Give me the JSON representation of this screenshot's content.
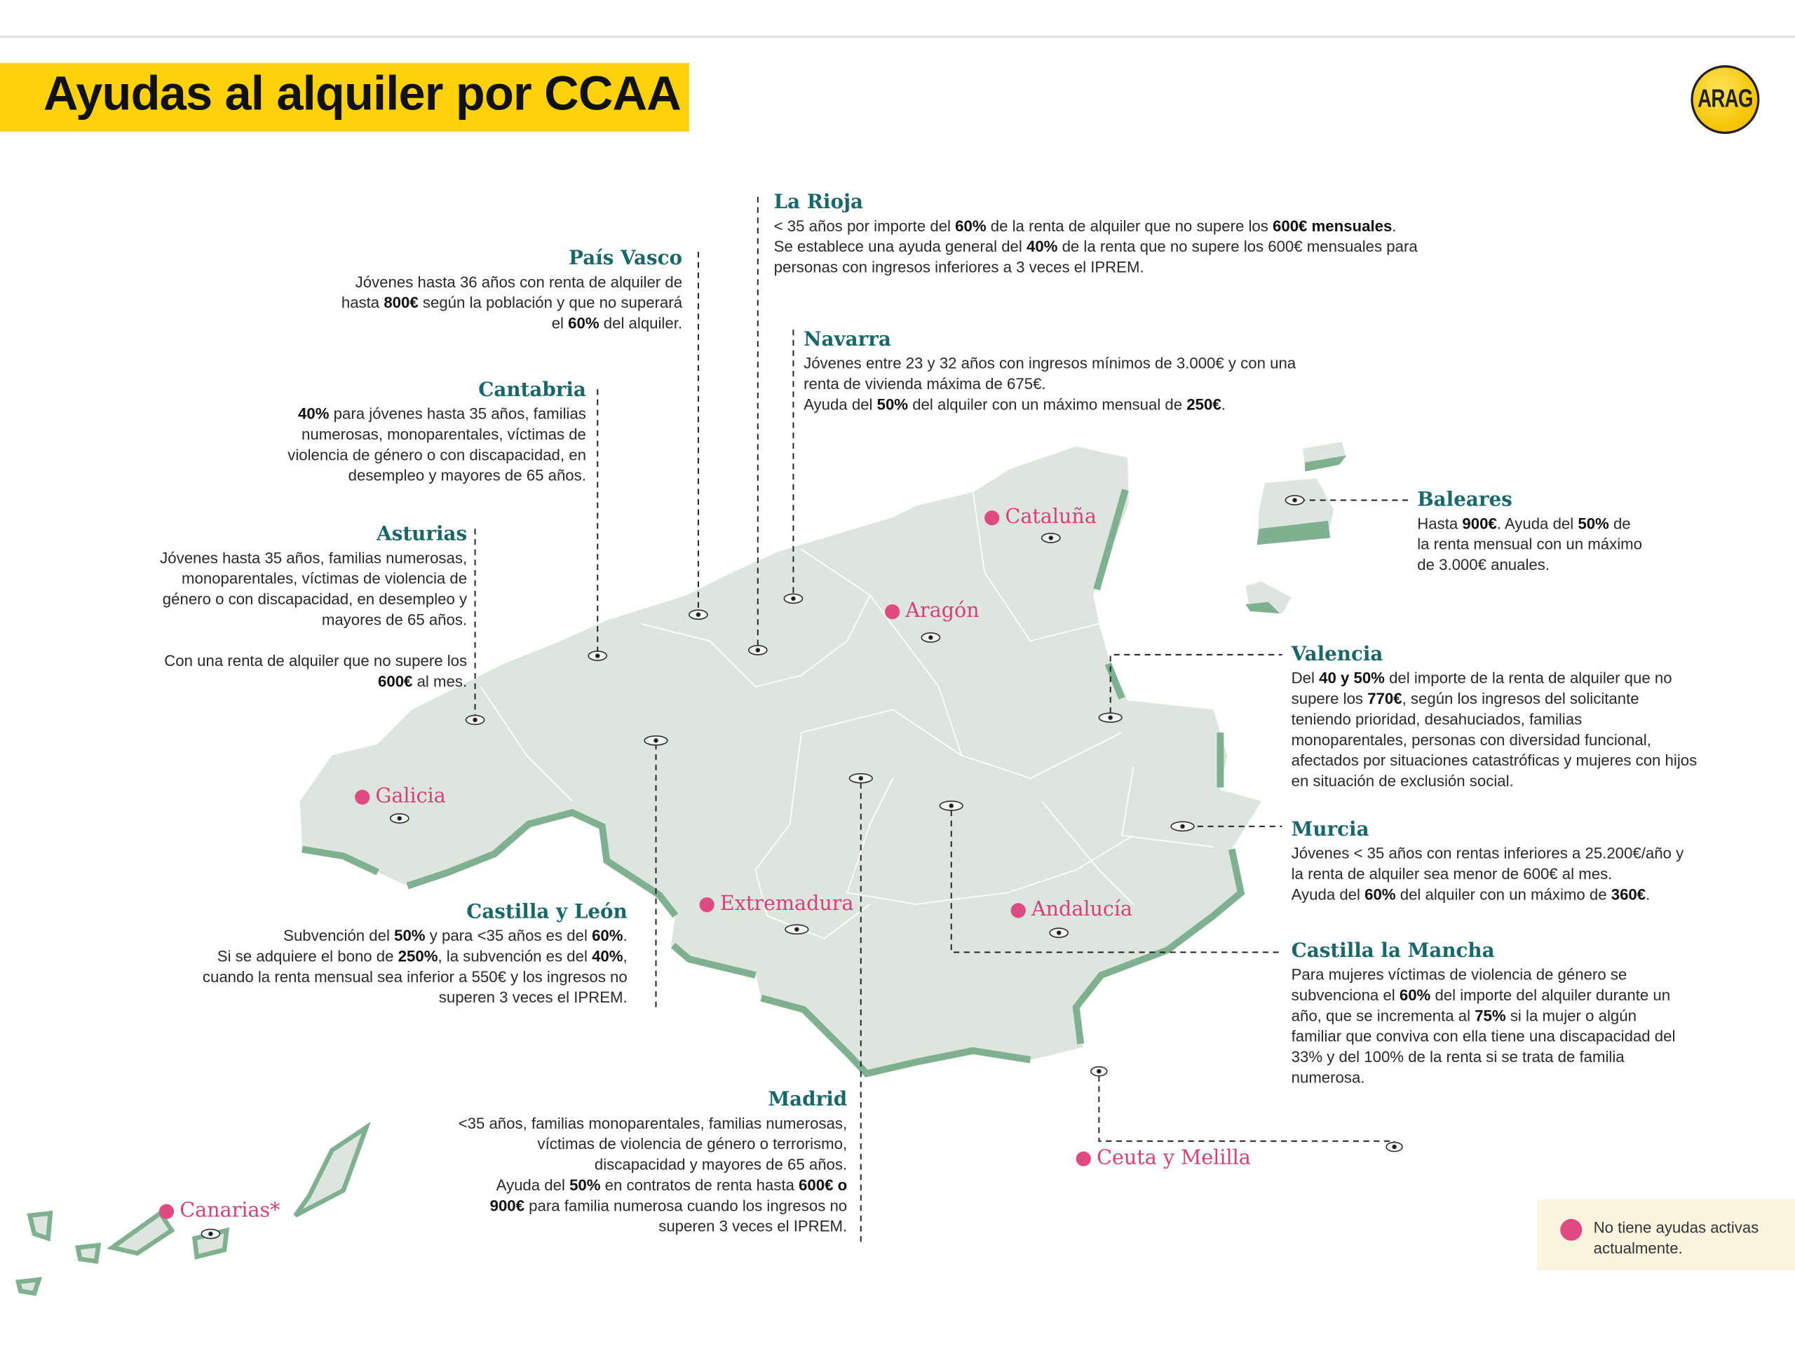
{
  "header": {
    "title": "Ayudas al alquiler por CCAA",
    "logo_text": "ARAG"
  },
  "colors": {
    "title_band": "#fdd20a",
    "heading": "#17686a",
    "no_aid_dot": "#df4b80",
    "land": "#dce5de",
    "coast": "#7fb08f"
  },
  "regions": {
    "la_rioja": {
      "name": "La Rioja",
      "paragraphs": [
        [
          {
            "t": "< 35 años por importe del "
          },
          {
            "t": "60%",
            "b": true
          },
          {
            "t": " de la renta de alquiler que no supere los "
          },
          {
            "t": "600€ mensuales",
            "b": true
          },
          {
            "t": "."
          }
        ],
        [
          {
            "t": "Se establece una ayuda general del "
          },
          {
            "t": "40%",
            "b": true
          },
          {
            "t": " de la renta que no supere los 600€ mensuales para personas con ingresos inferiores a 3 veces el IPREM."
          }
        ]
      ]
    },
    "pais_vasco": {
      "name": "País Vasco",
      "paragraphs": [
        [
          {
            "t": "Jóvenes hasta 36 años con renta de alquiler de hasta "
          },
          {
            "t": "800€",
            "b": true
          },
          {
            "t": " según la población y que no superará el "
          },
          {
            "t": "60%",
            "b": true
          },
          {
            "t": " del alquiler."
          }
        ]
      ]
    },
    "navarra": {
      "name": "Navarra",
      "paragraphs": [
        [
          {
            "t": "Jóvenes entre 23 y 32 años con ingresos mínimos de 3.000€ y con una renta de vivienda máxima de 675€."
          }
        ],
        [
          {
            "t": "Ayuda del "
          },
          {
            "t": "50%",
            "b": true
          },
          {
            "t": " del alquiler con un máximo mensual de "
          },
          {
            "t": "250€",
            "b": true
          },
          {
            "t": "."
          }
        ]
      ]
    },
    "cantabria": {
      "name": "Cantabria",
      "paragraphs": [
        [
          {
            "t": "40%",
            "b": true
          },
          {
            "t": " para jóvenes hasta 35 años, familias numerosas, monoparentales, víctimas de violencia de género o con discapacidad, en desempleo y mayores de 65 años."
          }
        ]
      ]
    },
    "asturias": {
      "name": "Asturias",
      "paragraphs": [
        [
          {
            "t": "Jóvenes hasta 35 años, familias numerosas, monoparentales, víctimas de violencia de género o con discapacidad, en desempleo y mayores de 65 años."
          }
        ],
        [
          {
            "t": "Con una renta de alquiler que no supere los "
          },
          {
            "t": "600€",
            "b": true
          },
          {
            "t": " al mes."
          }
        ]
      ]
    },
    "baleares": {
      "name": "Baleares",
      "paragraphs": [
        [
          {
            "t": "Hasta "
          },
          {
            "t": "900€",
            "b": true
          },
          {
            "t": ".  Ayuda del "
          },
          {
            "t": "50%",
            "b": true
          },
          {
            "t": " de la renta mensual con un máximo de 3.000€ anuales."
          }
        ]
      ]
    },
    "valencia": {
      "name": "Valencia",
      "paragraphs": [
        [
          {
            "t": "Del "
          },
          {
            "t": "40 y 50%",
            "b": true
          },
          {
            "t": " del importe de la renta de alquiler que no supere los "
          },
          {
            "t": "770€",
            "b": true
          },
          {
            "t": ", según los ingresos del solicitante teniendo prioridad, desahuciados, familias monoparentales, personas con diversidad funcional, afectados por situaciones catastróficas y mujeres con hijos en situación de exclusión social."
          }
        ]
      ]
    },
    "murcia": {
      "name": "Murcia",
      "paragraphs": [
        [
          {
            "t": "Jóvenes < 35 años con rentas inferiores a 25.200€/año y la renta de alquiler sea menor de 600€ al mes."
          }
        ],
        [
          {
            "t": "Ayuda del "
          },
          {
            "t": "60%",
            "b": true
          },
          {
            "t": " del alquiler con un máximo de "
          },
          {
            "t": "360€",
            "b": true
          },
          {
            "t": "."
          }
        ]
      ]
    },
    "castilla_la_mancha": {
      "name": "Castilla la Mancha",
      "paragraphs": [
        [
          {
            "t": "Para mujeres víctimas de violencia de género se subvenciona el "
          },
          {
            "t": "60%",
            "b": true
          },
          {
            "t": " del importe del alquiler durante un año, que se incrementa al "
          },
          {
            "t": "75%",
            "b": true
          },
          {
            "t": " si la mujer o algún familiar que conviva con ella tiene una discapacidad del 33% y del 100% de la renta si se trata de familia numerosa."
          }
        ]
      ]
    },
    "castilla_y_leon": {
      "name": "Castilla y León",
      "paragraphs": [
        [
          {
            "t": "Subvención del "
          },
          {
            "t": "50%",
            "b": true
          },
          {
            "t": " y para <35 años es del "
          },
          {
            "t": "60%",
            "b": true
          },
          {
            "t": "."
          }
        ],
        [
          {
            "t": "Si se adquiere el bono de "
          },
          {
            "t": "250%",
            "b": true
          },
          {
            "t": ", la subvención es del "
          },
          {
            "t": "40%",
            "b": true
          },
          {
            "t": ", cuando la renta mensual sea inferior a 550€ y los ingresos no superen 3 veces el IPREM."
          }
        ]
      ]
    },
    "madrid": {
      "name": "Madrid",
      "paragraphs": [
        [
          {
            "t": "<35 años, familias monoparentales, familias numerosas, víctimas de violencia de género o terrorismo, discapacidad y mayores de 65 años."
          }
        ],
        [
          {
            "t": "Ayuda del "
          },
          {
            "t": "50%",
            "b": true
          },
          {
            "t": " en contratos de renta hasta "
          },
          {
            "t": "600€ o 900€",
            "b": true
          },
          {
            "t": " para familia numerosa cuando los ingresos no superen 3 veces el IPREM."
          }
        ]
      ]
    }
  },
  "no_aid_regions": {
    "cataluna": "Cataluña",
    "aragon": "Aragón",
    "galicia": "Galicia",
    "extremadura": "Extremadura",
    "andalucia": "Andalucía",
    "ceuta_melilla": "Ceuta y Melilla",
    "canarias": "Canarias*"
  },
  "legend": {
    "text": "No tiene ayudas activas actualmente."
  }
}
